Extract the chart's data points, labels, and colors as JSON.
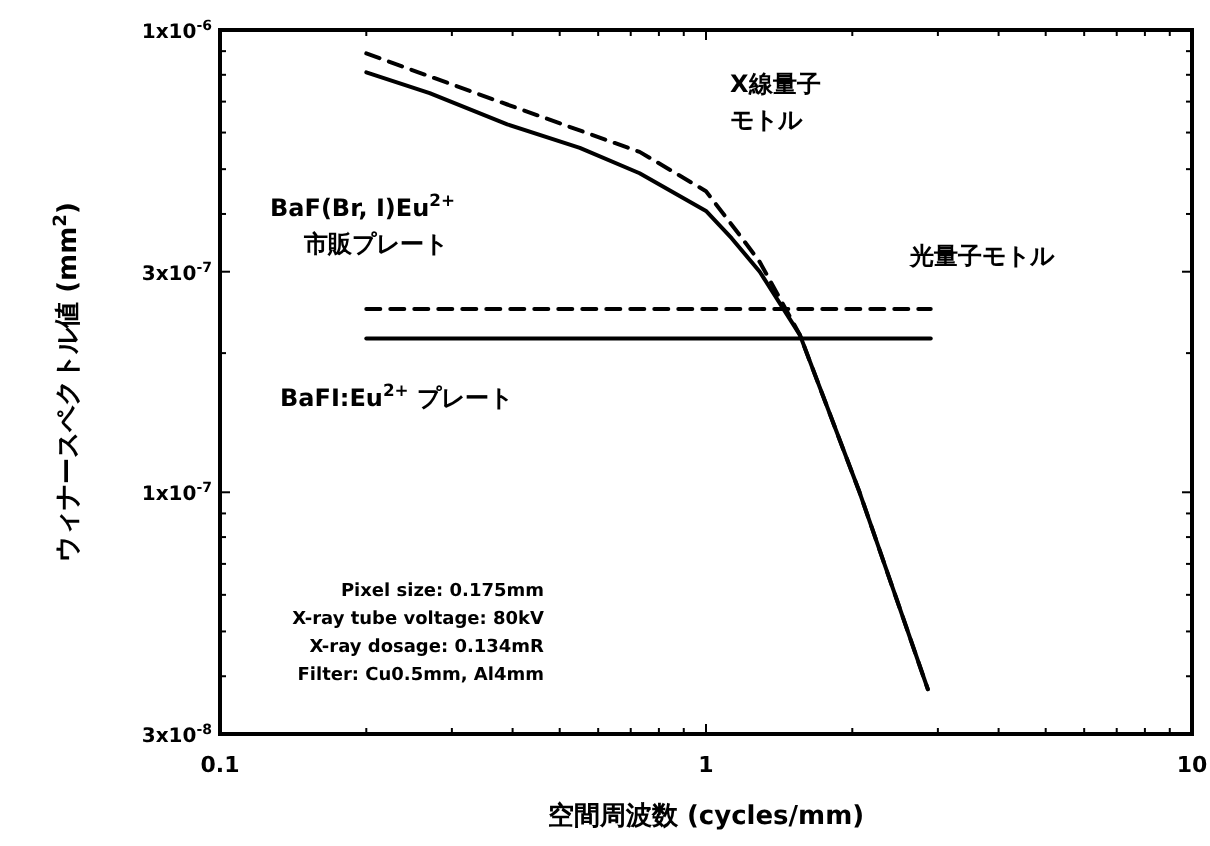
{
  "chart_data": {
    "type": "line",
    "xlabel": "空間周波数 (cycles/mm)",
    "ylabel": "ウィナースペクトル値 (mm$^{2}$)",
    "log": "xy",
    "xlim": [
      0.1,
      10
    ],
    "ylim": [
      3e-08,
      1e-06
    ],
    "xticks": [
      0.1,
      {
        "value": 0.2,
        "label": null
      },
      {
        "value": 0.3,
        "label": null
      },
      {
        "value": 0.4,
        "label": null
      },
      {
        "value": 0.5,
        "label": null
      },
      {
        "value": 0.6,
        "label": null
      },
      {
        "value": 0.7,
        "label": null
      },
      {
        "value": 0.8,
        "label": null
      },
      {
        "value": 0.9,
        "label": null
      },
      1,
      {
        "value": 2,
        "label": null
      },
      {
        "value": 3,
        "label": null
      },
      {
        "value": 4,
        "label": null
      },
      {
        "value": 5,
        "label": null
      },
      {
        "value": 6,
        "label": null
      },
      {
        "value": 7,
        "label": null
      },
      {
        "value": 8,
        "label": null
      },
      {
        "value": 9,
        "label": null
      },
      10
    ],
    "yticks": [
      {
        "value": 3e-08,
        "label": "3x10$^{-8}$"
      },
      {
        "value": 4e-08,
        "label": null
      },
      {
        "value": 5e-08,
        "label": null
      },
      {
        "value": 6e-08,
        "label": null
      },
      {
        "value": 7e-08,
        "label": null
      },
      {
        "value": 8e-08,
        "label": null
      },
      {
        "value": 9e-08,
        "label": null
      },
      {
        "value": 1e-07,
        "label": "1x10$^{-7}$"
      },
      {
        "value": 2e-07,
        "label": null
      },
      {
        "value": 3e-07,
        "label": "3x10$^{-7}$"
      },
      {
        "value": 4e-07,
        "label": null
      },
      {
        "value": 5e-07,
        "label": null
      },
      {
        "value": 6e-07,
        "label": null
      },
      {
        "value": 7e-07,
        "label": null
      },
      {
        "value": 8e-07,
        "label": null
      },
      {
        "value": 9e-07,
        "label": null
      },
      {
        "value": 1e-06,
        "label": "1x10$^{-6}$"
      }
    ],
    "series": [
      {
        "color": "#000000",
        "line_style": "solid",
        "x": [
          0.2,
          0.27,
          0.39,
          0.55,
          0.73,
          1.0,
          1.13,
          1.29,
          1.56,
          2.07,
          2.86
        ],
        "values": [
          8.1e-07,
          7.3e-07,
          6.25e-07,
          5.56e-07,
          4.9e-07,
          4.06e-07,
          3.54e-07,
          3e-07,
          2.19e-07,
          1e-07,
          3.75e-08
        ]
      },
      {
        "color": "#000000",
        "line_style": "dashed",
        "x": [
          0.2,
          0.39,
          0.73,
          1.0,
          1.18,
          1.29,
          1.56,
          2.07,
          2.86
        ],
        "values": [
          8.9e-07,
          6.9e-07,
          5.45e-07,
          4.48e-07,
          3.57e-07,
          3.15e-07,
          2.19e-07,
          1e-07,
          3.75e-08
        ]
      },
      {
        "color": "#000000",
        "line_style": "dashed",
        "x": [
          0.2,
          2.9
        ],
        "values": [
          2.49e-07,
          2.49e-07
        ]
      },
      {
        "color": "#000000",
        "line_style": "solid",
        "x": [
          0.2,
          2.9
        ],
        "values": [
          2.15e-07,
          2.15e-07
        ]
      }
    ],
    "annotations": [
      "X線量子",
      "モトル",
      "BaF(Br, I)Eu$^{2+}$",
      "市販プレート",
      "光量子モトル",
      "BaFI:Eu$^{2+}$ プレート",
      "Pixel size: 0.175mm",
      "X-ray tube voltage: 80kV",
      "X-ray dosage: 0.134mR",
      "Filter: Cu0.5mm, Al4mm"
    ],
    "grid": false
  }
}
